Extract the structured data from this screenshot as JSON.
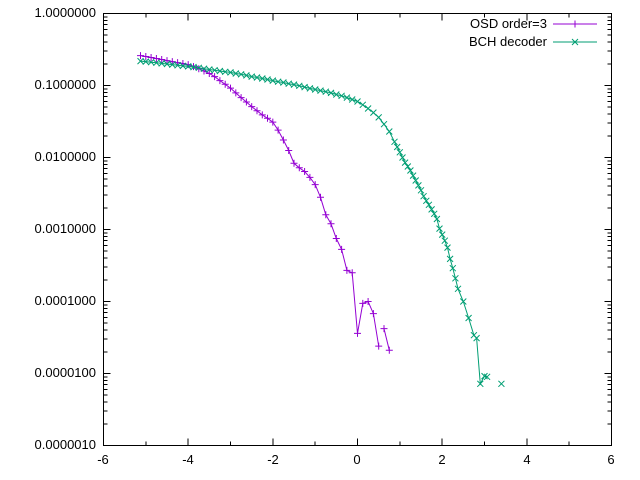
{
  "figure": {
    "background": "#ffffff",
    "frame_color": "#000000",
    "text_color": "#000000"
  },
  "chart_data": {
    "type": "line",
    "title": "",
    "xlabel": "",
    "ylabel": "",
    "grid": false,
    "legend_position": "top-right-inside",
    "x_range": [
      -6,
      6
    ],
    "y_range": [
      1e-06,
      1
    ],
    "y_scale": "log",
    "x_ticks": [
      {
        "value": -6,
        "label": "-6"
      },
      {
        "value": -4,
        "label": "-4"
      },
      {
        "value": -2,
        "label": "-2"
      },
      {
        "value": 0,
        "label": "0"
      },
      {
        "value": 2,
        "label": "2"
      },
      {
        "value": 4,
        "label": "4"
      },
      {
        "value": 6,
        "label": "6"
      }
    ],
    "x_minor_ticks": [
      -5,
      -3,
      -1,
      1,
      3,
      5
    ],
    "y_ticks": [
      {
        "value": 1,
        "label": "1.0000000"
      },
      {
        "value": 0.1,
        "label": "0.1000000"
      },
      {
        "value": 0.01,
        "label": "0.0100000"
      },
      {
        "value": 0.001,
        "label": "0.0010000"
      },
      {
        "value": 0.0001,
        "label": "0.0001000"
      },
      {
        "value": 1e-05,
        "label": "0.0000100"
      },
      {
        "value": 1e-06,
        "label": "0.0000010"
      }
    ],
    "series": [
      {
        "id": "osd",
        "name": "OSD order=3",
        "color": "#9400d3",
        "marker": "plus",
        "points": [
          [
            -5.125,
            0.26
          ],
          [
            -5.0,
            0.253
          ],
          [
            -4.875,
            0.245
          ],
          [
            -4.75,
            0.237
          ],
          [
            -4.625,
            0.23
          ],
          [
            -4.5,
            0.222
          ],
          [
            -4.375,
            0.215
          ],
          [
            -4.25,
            0.208
          ],
          [
            -4.125,
            0.202
          ],
          [
            -4.0,
            0.195
          ],
          [
            -3.875,
            0.183
          ],
          [
            -3.75,
            0.171
          ],
          [
            -3.625,
            0.159
          ],
          [
            -3.5,
            0.147
          ],
          [
            -3.375,
            0.133
          ],
          [
            -3.25,
            0.117
          ],
          [
            -3.125,
            0.104
          ],
          [
            -3.0,
            0.092
          ],
          [
            -2.875,
            0.079
          ],
          [
            -2.75,
            0.068
          ],
          [
            -2.625,
            0.059
          ],
          [
            -2.5,
            0.051
          ],
          [
            -2.375,
            0.0445
          ],
          [
            -2.25,
            0.039
          ],
          [
            -2.125,
            0.035
          ],
          [
            -2.0,
            0.031
          ],
          [
            -1.875,
            0.024
          ],
          [
            -1.75,
            0.0175
          ],
          [
            -1.625,
            0.0125
          ],
          [
            -1.5,
            0.0083
          ],
          [
            -1.375,
            0.0072
          ],
          [
            -1.25,
            0.0064
          ],
          [
            -1.125,
            0.0053
          ],
          [
            -1.0,
            0.0042
          ],
          [
            -0.875,
            0.0028
          ],
          [
            -0.75,
            0.0016
          ],
          [
            -0.625,
            0.0012
          ],
          [
            -0.5,
            0.00075
          ],
          [
            -0.375,
            0.00053
          ],
          [
            -0.25,
            0.00027
          ],
          [
            -0.125,
            0.00025
          ],
          [
            0.0,
            3.6e-05
          ],
          [
            0.125,
            9.4e-05
          ],
          [
            0.25,
            0.0001
          ],
          [
            0.375,
            6.8e-05
          ],
          [
            0.5,
            2.4e-05
          ],
          null,
          [
            0.625,
            4.2e-05
          ],
          [
            0.75,
            2.1e-05
          ]
        ]
      },
      {
        "id": "bch",
        "name": "BCH decoder",
        "color": "#009e73",
        "marker": "cross",
        "points": [
          [
            -5.125,
            0.218
          ],
          [
            -5.0,
            0.215
          ],
          [
            -4.875,
            0.211
          ],
          [
            -4.75,
            0.207
          ],
          [
            -4.625,
            0.203
          ],
          [
            -4.5,
            0.199
          ],
          [
            -4.375,
            0.195
          ],
          [
            -4.25,
            0.191
          ],
          [
            -4.125,
            0.187
          ],
          [
            -4.0,
            0.184
          ],
          [
            -3.875,
            0.18
          ],
          [
            -3.75,
            0.176
          ],
          [
            -3.625,
            0.171
          ],
          [
            -3.5,
            0.167
          ],
          [
            -3.375,
            0.163
          ],
          [
            -3.25,
            0.159
          ],
          [
            -3.125,
            0.155
          ],
          [
            -3.0,
            0.152
          ],
          [
            -2.875,
            0.147
          ],
          [
            -2.75,
            0.143
          ],
          [
            -2.625,
            0.138
          ],
          [
            -2.5,
            0.133
          ],
          [
            -2.375,
            0.129
          ],
          [
            -2.25,
            0.125
          ],
          [
            -2.125,
            0.121
          ],
          [
            -2.0,
            0.117
          ],
          [
            -1.875,
            0.113
          ],
          [
            -1.75,
            0.11
          ],
          [
            -1.625,
            0.106
          ],
          [
            -1.5,
            0.103
          ],
          [
            -1.375,
            0.099
          ],
          [
            -1.25,
            0.095
          ],
          [
            -1.125,
            0.091
          ],
          [
            -1.0,
            0.088
          ],
          [
            -0.875,
            0.085
          ],
          [
            -0.75,
            0.082
          ],
          [
            -0.625,
            0.079
          ],
          [
            -0.5,
            0.075
          ],
          [
            -0.375,
            0.072
          ],
          [
            -0.25,
            0.068
          ],
          [
            -0.125,
            0.064
          ],
          [
            0.0,
            0.06
          ],
          [
            0.125,
            0.054
          ],
          [
            0.25,
            0.048
          ],
          [
            0.375,
            0.042
          ],
          [
            0.5,
            0.036
          ],
          [
            0.625,
            0.029
          ],
          [
            0.75,
            0.023
          ],
          [
            0.875,
            0.0165
          ],
          [
            0.9375,
            0.014
          ],
          [
            1.0,
            0.0118
          ],
          [
            1.0625,
            0.01
          ],
          [
            1.125,
            0.0085
          ],
          [
            1.1875,
            0.0075
          ],
          [
            1.25,
            0.0066
          ],
          [
            1.3125,
            0.0056
          ],
          [
            1.375,
            0.0048
          ],
          [
            1.4375,
            0.0041
          ],
          [
            1.5,
            0.0035
          ],
          [
            1.5625,
            0.0029
          ],
          [
            1.625,
            0.0025
          ],
          [
            1.6875,
            0.0022
          ],
          [
            1.75,
            0.0019
          ],
          [
            1.8125,
            0.00165
          ],
          [
            1.875,
            0.0014
          ],
          [
            1.9375,
            0.00103
          ],
          [
            2.0,
            0.00085
          ],
          [
            2.0625,
            0.0007
          ],
          [
            2.125,
            0.00056
          ],
          [
            2.1875,
            0.00039
          ],
          [
            2.25,
            0.00029
          ],
          [
            2.3125,
            0.00021
          ],
          [
            2.375,
            0.00015
          ],
          [
            2.5,
            0.0001
          ],
          [
            2.625,
            5.9e-05
          ],
          [
            2.75,
            3.4e-05
          ],
          [
            2.8125,
            3.1e-05
          ],
          [
            2.9,
            7.2e-06
          ],
          [
            3.0,
            9.2e-06
          ],
          [
            3.0625,
            9e-06
          ],
          null,
          [
            3.4,
            7.2e-06
          ]
        ]
      }
    ]
  }
}
